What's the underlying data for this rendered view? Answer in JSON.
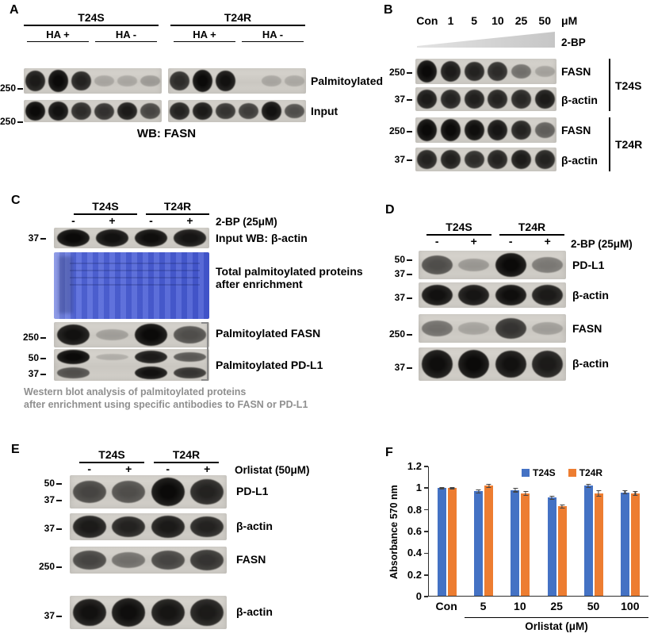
{
  "panelA": {
    "label": "A",
    "group1": "T24S",
    "group2": "T24R",
    "sub1": "HA +",
    "sub2": "HA -",
    "mw_palmitoylated": "250",
    "mw_input": "250",
    "row1_label": "Palmitoylated",
    "row2_label": "Input",
    "caption": "WB: FASN",
    "blots": {
      "palm_s": {
        "rows": [
          [
            0.85,
            0.95,
            0.8,
            0.04,
            0.03,
            0.1
          ]
        ]
      },
      "palm_r": {
        "rows": [
          [
            0.75,
            1.0,
            0.9,
            0.0,
            0.04,
            0.02
          ]
        ]
      },
      "input_s": {
        "rows": [
          [
            0.95,
            0.9,
            0.75,
            0.72,
            0.85,
            0.6
          ]
        ]
      },
      "input_r": {
        "rows": [
          [
            0.8,
            0.85,
            0.7,
            0.65,
            0.9,
            0.55
          ]
        ]
      }
    }
  },
  "panelB": {
    "label": "B",
    "lane_labels": [
      "Con",
      "1",
      "5",
      "10",
      "25",
      "50"
    ],
    "unit": "μM",
    "treatment": "2-BP",
    "group1": "T24S",
    "group2": "T24R",
    "strips": [
      {
        "mw": "250",
        "label": "FASN"
      },
      {
        "mw": "37",
        "label": "β-actin"
      },
      {
        "mw": "250",
        "label": "FASN"
      },
      {
        "mw": "37",
        "label": "β-actin"
      }
    ],
    "blots": {
      "fasn_s": {
        "rows": [
          [
            0.95,
            0.85,
            0.8,
            0.75,
            0.35,
            0.06
          ]
        ]
      },
      "actin_s": {
        "rows": [
          [
            0.85,
            0.8,
            0.82,
            0.8,
            0.78,
            0.85
          ]
        ]
      },
      "fasn_r": {
        "rows": [
          [
            1.0,
            0.95,
            0.92,
            0.88,
            0.8,
            0.45
          ]
        ]
      },
      "actin_r": {
        "rows": [
          [
            0.8,
            0.82,
            0.75,
            0.8,
            0.85,
            0.8
          ]
        ]
      }
    }
  },
  "panelC": {
    "label": "C",
    "group1": "T24S",
    "group2": "T24R",
    "lane_labels": [
      "-",
      "+",
      "-",
      "+"
    ],
    "treatment": "2-BP (25μM)",
    "strip1": {
      "mw": "37",
      "label": "Input WB: β-actin"
    },
    "membrane_label_line1": "Total palmitoylated proteins",
    "membrane_label_line2": "after enrichment",
    "strip3": {
      "mw": "250",
      "label": "Palmitoylated FASN"
    },
    "strip4": {
      "mw1": "50",
      "mw2": "37",
      "label": "Palmitoylated PD-L1"
    },
    "caption_line1": "Western blot analysis of palmitoylated proteins",
    "caption_line2": "after enrichment using specific antibodies to FASN or PD-L1",
    "blots": {
      "input_actin": {
        "rows": [
          [
            0.95,
            0.9,
            0.92,
            0.88
          ]
        ]
      },
      "palm_fasn": {
        "rows": [
          [
            0.9,
            0.08,
            0.95,
            0.55
          ]
        ]
      },
      "palm_pdl1": {
        "rows": [
          [
            0.95,
            0.02,
            0.85,
            0.5
          ],
          [
            0.55,
            0.0,
            0.9,
            0.7
          ]
        ]
      }
    }
  },
  "panelD": {
    "label": "D",
    "group1": "T24S",
    "group2": "T24R",
    "lane_labels": [
      "-",
      "+",
      "-",
      "+"
    ],
    "treatment": "2-BP (25μM)",
    "strips": [
      {
        "mw1": "50",
        "mw2": "37",
        "label": "PD-L1"
      },
      {
        "mw": "37",
        "label": "β-actin"
      },
      {
        "mw": "250",
        "label": "FASN"
      },
      {
        "mw": "37",
        "label": "β-actin"
      }
    ],
    "blots": {
      "pdl1": {
        "rows": [
          [
            0.55,
            0.12,
            0.95,
            0.3
          ]
        ]
      },
      "actin1": {
        "rows": [
          [
            0.9,
            0.88,
            0.92,
            0.85
          ]
        ]
      },
      "fasn": {
        "rows": [
          [
            0.35,
            0.05,
            0.7,
            0.08
          ]
        ]
      },
      "actin2": {
        "rows": [
          [
            0.92,
            0.95,
            0.9,
            0.85
          ]
        ]
      }
    }
  },
  "panelE": {
    "label": "E",
    "group1": "T24S",
    "group2": "T24R",
    "lane_labels": [
      "-",
      "+",
      "-",
      "+"
    ],
    "treatment": "Orlistat (50μM)",
    "strips": [
      {
        "mw1": "50",
        "mw2": "37",
        "label": "PD-L1"
      },
      {
        "mw": "37",
        "label": "β-actin"
      },
      {
        "mw": "250",
        "label": "FASN"
      },
      {
        "mw": "37",
        "label": "β-actin"
      }
    ],
    "blots": {
      "pdl1": {
        "rows": [
          [
            0.6,
            0.55,
            0.95,
            0.8
          ]
        ]
      },
      "actin1": {
        "rows": [
          [
            0.85,
            0.8,
            0.85,
            0.8
          ]
        ]
      },
      "fasn": {
        "rows": [
          [
            0.6,
            0.35,
            0.6,
            0.7
          ]
        ]
      },
      "actin2": {
        "rows": [
          [
            0.9,
            0.92,
            0.88,
            0.85
          ]
        ]
      }
    }
  },
  "panelF": {
    "label": "F"
  },
  "chart_data": {
    "type": "bar",
    "title": "",
    "categories": [
      "Con",
      "5",
      "10",
      "25",
      "50",
      "100"
    ],
    "series": [
      {
        "name": "T24S",
        "color": "#4472C4",
        "values": [
          1.0,
          0.97,
          0.98,
          0.91,
          1.02,
          0.96
        ],
        "errors": [
          0.01,
          0.02,
          0.02,
          0.02,
          0.02,
          0.02
        ]
      },
      {
        "name": "T24R",
        "color": "#ED7D31",
        "values": [
          1.0,
          1.02,
          0.95,
          0.83,
          0.95,
          0.95
        ],
        "errors": [
          0.01,
          0.02,
          0.02,
          0.02,
          0.03,
          0.02
        ]
      }
    ],
    "ylabel": "Absorbance 570 nm",
    "xlabel": "Orlistat (μM)",
    "ylim": [
      0,
      1.2
    ],
    "yticks": [
      0,
      0.2,
      0.4,
      0.6,
      0.8,
      1,
      1.2
    ],
    "legend_position": "top-right",
    "grid": false
  }
}
